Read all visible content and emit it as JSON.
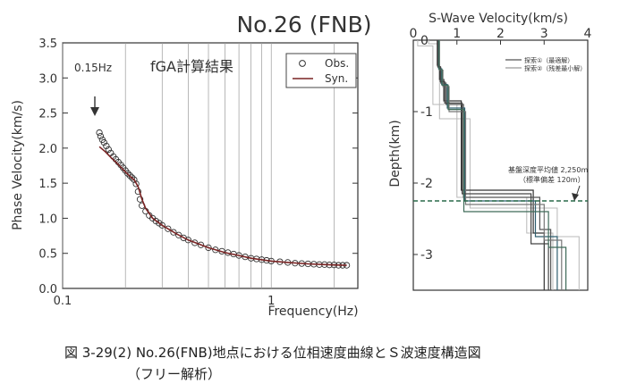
{
  "title": "No.26 (FNB)",
  "caption": {
    "line1": "図 3-29(2) No.26(FNB)地点における位相速度曲線とＳ波速度構造図",
    "line2": "（フリー解析）"
  },
  "chart_data": [
    {
      "type": "scatter",
      "title": "fGA計算結果",
      "xlabel": "Frequency(Hz)",
      "ylabel": "Phase Velocity(km/s)",
      "xscale": "log",
      "xlim": [
        0.1,
        2.6
      ],
      "ylim": [
        0,
        3.5
      ],
      "x_tick_labels": [
        "0.1",
        "1"
      ],
      "y_tick_labels": [
        "0.0",
        "0.5",
        "1.0",
        "1.5",
        "2.0",
        "2.5",
        "3.0",
        "3.5"
      ],
      "grid": true,
      "legend": {
        "position": "top-right",
        "entries": [
          "Obs.",
          "Syn."
        ]
      },
      "annotation": {
        "text": "0.15Hz",
        "x": 0.15,
        "y": 2.5
      },
      "series": [
        {
          "name": "Obs.",
          "marker": "circle",
          "x": [
            0.15,
            0.152,
            0.155,
            0.158,
            0.162,
            0.166,
            0.17,
            0.175,
            0.18,
            0.185,
            0.19,
            0.195,
            0.2,
            0.205,
            0.21,
            0.215,
            0.22,
            0.225,
            0.23,
            0.235,
            0.24,
            0.25,
            0.26,
            0.27,
            0.28,
            0.29,
            0.3,
            0.32,
            0.34,
            0.36,
            0.38,
            0.4,
            0.43,
            0.46,
            0.5,
            0.54,
            0.58,
            0.62,
            0.66,
            0.7,
            0.75,
            0.8,
            0.85,
            0.9,
            0.95,
            1.0,
            1.1,
            1.2,
            1.3,
            1.4,
            1.5,
            1.6,
            1.7,
            1.8,
            1.9,
            2.0,
            2.1,
            2.2,
            2.3
          ],
          "y": [
            2.22,
            2.17,
            2.12,
            2.08,
            2.03,
            1.98,
            1.93,
            1.88,
            1.84,
            1.8,
            1.76,
            1.72,
            1.68,
            1.64,
            1.61,
            1.58,
            1.55,
            1.49,
            1.38,
            1.27,
            1.18,
            1.1,
            1.04,
            1.0,
            0.96,
            0.93,
            0.9,
            0.85,
            0.8,
            0.76,
            0.72,
            0.69,
            0.65,
            0.62,
            0.58,
            0.55,
            0.53,
            0.51,
            0.49,
            0.47,
            0.45,
            0.43,
            0.42,
            0.41,
            0.4,
            0.39,
            0.38,
            0.37,
            0.36,
            0.355,
            0.35,
            0.345,
            0.34,
            0.34,
            0.335,
            0.335,
            0.33,
            0.33,
            0.33
          ]
        },
        {
          "name": "Syn.",
          "marker": "line",
          "color": "#7a2424",
          "x": [
            0.15,
            0.16,
            0.17,
            0.18,
            0.19,
            0.2,
            0.21,
            0.22,
            0.23,
            0.24,
            0.25,
            0.27,
            0.3,
            0.35,
            0.4,
            0.5,
            0.6,
            0.7,
            0.8,
            1.0,
            1.2,
            1.5,
            1.8,
            2.0,
            2.3
          ],
          "y": [
            2.02,
            1.95,
            1.87,
            1.8,
            1.73,
            1.66,
            1.6,
            1.55,
            1.45,
            1.27,
            1.14,
            1.0,
            0.9,
            0.78,
            0.69,
            0.58,
            0.51,
            0.47,
            0.43,
            0.39,
            0.37,
            0.35,
            0.34,
            0.335,
            0.33
          ]
        }
      ]
    },
    {
      "type": "line",
      "title": "S-Wave Velocity(km/s)",
      "xlabel": "S-Wave Velocity(km/s)",
      "ylabel": "Depth(km)",
      "xlim": [
        0,
        4
      ],
      "ylim": [
        0,
        -3.5
      ],
      "x_tick_labels": [
        "0",
        "1",
        "2",
        "3",
        "4"
      ],
      "y_tick_labels": [
        "0",
        "-1",
        "-2",
        "-3"
      ],
      "legend": {
        "position": "top-right",
        "entries": [
          "探索①（最適解）",
          "探索②（残差最小解）"
        ]
      },
      "annotation": {
        "text_line1": "基盤深度平均値 2,250m",
        "text_line2": "（標準偏差 120m）",
        "depth": -2.25
      },
      "bounds": [
        {
          "v": [
            0.1,
            0.1,
            0.45,
            0.45,
            1.0,
            1.0,
            2.6,
            2.6,
            3.2,
            3.2
          ],
          "d": [
            0,
            -0.08,
            -0.08,
            -0.9,
            -0.9,
            -2.2,
            -2.2,
            -2.7,
            -2.7,
            -3.5
          ]
        },
        {
          "v": [
            0.35,
            0.35,
            0.6,
            0.6,
            1.3,
            1.3,
            3.3,
            3.3,
            3.8,
            3.8
          ],
          "d": [
            0,
            -0.05,
            -0.05,
            -1.1,
            -1.1,
            -2.35,
            -2.35,
            -2.75,
            -2.75,
            -3.5
          ]
        }
      ],
      "profiles": [
        {
          "v": [
            0.55,
            0.55,
            0.6,
            0.6,
            0.7,
            0.7,
            1.1,
            1.1,
            2.75,
            2.75,
            3.0,
            3.0
          ],
          "d": [
            0,
            -0.35,
            -0.35,
            -0.55,
            -0.55,
            -0.85,
            -0.85,
            -2.1,
            -2.1,
            -2.7,
            -2.7,
            -3.5
          ]
        },
        {
          "v": [
            0.57,
            0.57,
            0.63,
            0.63,
            0.75,
            0.75,
            1.15,
            1.15,
            2.9,
            2.9,
            3.15,
            3.15
          ],
          "d": [
            0,
            -0.38,
            -0.38,
            -0.6,
            -0.6,
            -0.9,
            -0.9,
            -2.2,
            -2.2,
            -2.65,
            -2.65,
            -3.5
          ]
        },
        {
          "v": [
            0.58,
            0.58,
            0.65,
            0.65,
            0.78,
            0.78,
            1.18,
            1.18,
            2.8,
            2.8,
            3.3,
            3.3
          ],
          "d": [
            0,
            -0.4,
            -0.4,
            -0.62,
            -0.62,
            -0.95,
            -0.95,
            -2.25,
            -2.25,
            -2.75,
            -2.75,
            -3.5
          ]
        },
        {
          "v": [
            0.6,
            0.6,
            0.68,
            0.68,
            0.82,
            0.82,
            1.2,
            1.2,
            3.0,
            3.0,
            3.4,
            3.4
          ],
          "d": [
            0,
            -0.42,
            -0.42,
            -0.65,
            -0.65,
            -1.0,
            -1.0,
            -2.3,
            -2.3,
            -2.8,
            -2.8,
            -3.5
          ]
        },
        {
          "v": [
            0.56,
            0.56,
            0.62,
            0.62,
            0.72,
            0.72,
            1.12,
            1.12,
            2.7,
            2.7,
            3.1,
            3.1
          ],
          "d": [
            0,
            -0.37,
            -0.37,
            -0.58,
            -0.58,
            -0.88,
            -0.88,
            -2.15,
            -2.15,
            -2.85,
            -2.85,
            -3.5
          ]
        },
        {
          "v": [
            0.59,
            0.59,
            0.66,
            0.66,
            0.8,
            0.8,
            1.16,
            1.16,
            3.1,
            3.1,
            3.5,
            3.5
          ],
          "d": [
            0,
            -0.41,
            -0.41,
            -0.63,
            -0.63,
            -0.97,
            -0.97,
            -2.4,
            -2.4,
            -2.9,
            -2.9,
            -3.5
          ]
        }
      ]
    }
  ]
}
